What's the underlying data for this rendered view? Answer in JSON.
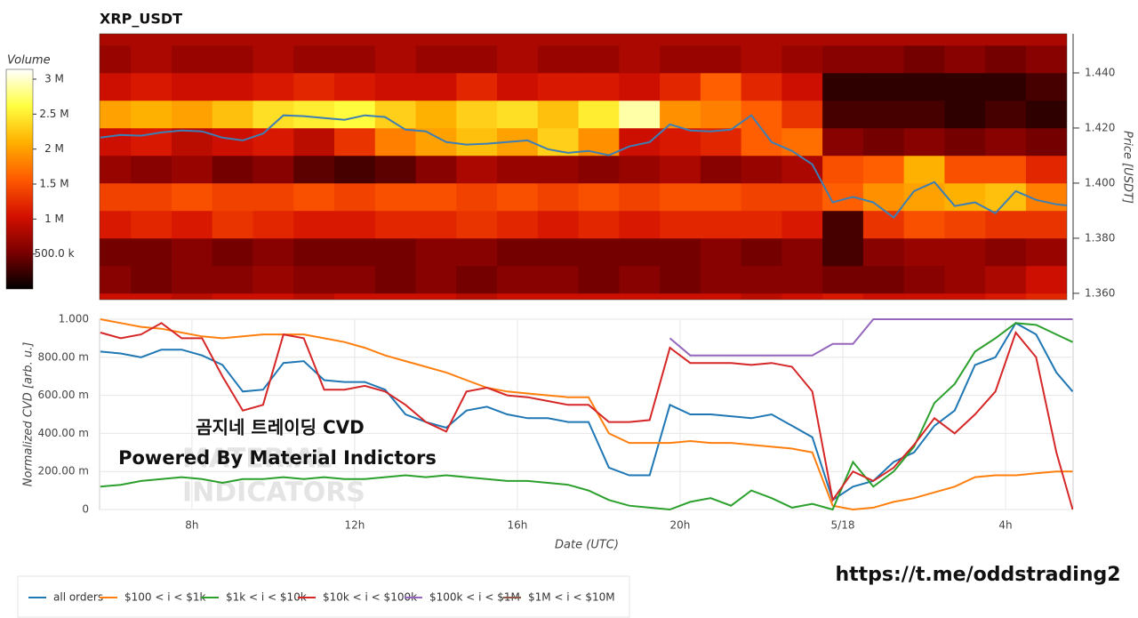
{
  "chart_data": [
    {
      "type": "heatmap",
      "title": "XRP_USDT",
      "colorbar_title": "Volume",
      "ylabel": "Price [USDT]",
      "x": [
        6,
        7,
        8,
        9,
        10,
        11,
        12,
        13,
        14,
        15,
        16,
        17,
        18,
        19,
        20,
        21,
        22,
        23,
        24,
        25,
        26,
        27,
        28,
        29
      ],
      "y": [
        1.355,
        1.365,
        1.375,
        1.385,
        1.395,
        1.405,
        1.415,
        1.425,
        1.435,
        1.445,
        1.455
      ],
      "z": [
        [
          1.0,
          1.0,
          0.9,
          1.0,
          1.0,
          0.9,
          1.0,
          1.0,
          1.0,
          0.9,
          1.0,
          1.0,
          1.0,
          1.0,
          1.0,
          1.0,
          0.9,
          1.0,
          1.1,
          1.0,
          1.0,
          1.0,
          1.1,
          1.2
        ],
        [
          0.6,
          0.5,
          0.6,
          0.6,
          0.7,
          0.6,
          0.6,
          0.5,
          0.6,
          0.5,
          0.6,
          0.6,
          0.5,
          0.6,
          0.5,
          0.6,
          0.6,
          0.6,
          0.5,
          0.5,
          0.6,
          0.7,
          0.8,
          1.0
        ],
        [
          0.5,
          0.5,
          0.6,
          0.5,
          0.6,
          0.5,
          0.5,
          0.5,
          0.6,
          0.6,
          0.5,
          0.5,
          0.5,
          0.5,
          0.5,
          0.6,
          0.5,
          0.6,
          0.3,
          0.6,
          0.7,
          0.7,
          0.6,
          0.7
        ],
        [
          1.1,
          1.2,
          1.1,
          1.3,
          1.2,
          1.1,
          1.1,
          1.2,
          1.2,
          1.3,
          1.2,
          1.1,
          1.2,
          1.1,
          1.2,
          1.2,
          1.2,
          1.1,
          0.3,
          1.3,
          1.5,
          1.4,
          1.3,
          1.3
        ],
        [
          1.4,
          1.4,
          1.5,
          1.4,
          1.4,
          1.5,
          1.4,
          1.5,
          1.5,
          1.4,
          1.5,
          1.4,
          1.5,
          1.4,
          1.5,
          1.5,
          1.4,
          1.4,
          1.6,
          1.9,
          2.0,
          2.1,
          2.2,
          1.8
        ],
        [
          0.7,
          0.6,
          0.7,
          0.5,
          0.6,
          0.4,
          0.3,
          0.4,
          0.6,
          0.8,
          0.7,
          0.7,
          0.6,
          0.7,
          0.8,
          0.6,
          0.7,
          0.8,
          1.5,
          1.6,
          2.1,
          1.5,
          1.5,
          1.2
        ],
        [
          1.0,
          1.1,
          0.9,
          1.0,
          1.1,
          0.9,
          1.3,
          1.8,
          2.0,
          2.2,
          2.0,
          2.3,
          1.9,
          1.0,
          1.1,
          1.2,
          1.6,
          1.7,
          0.6,
          0.5,
          0.6,
          0.5,
          0.6,
          0.5
        ],
        [
          2.0,
          2.1,
          2.0,
          2.2,
          2.4,
          2.5,
          2.6,
          2.3,
          2.1,
          2.3,
          2.4,
          2.2,
          2.5,
          2.9,
          1.9,
          1.8,
          1.6,
          1.3,
          0.3,
          0.3,
          0.3,
          0.2,
          0.3,
          0.2
        ],
        [
          1.0,
          1.1,
          1.0,
          1.0,
          1.1,
          1.2,
          1.1,
          1.0,
          1.0,
          1.2,
          1.0,
          1.1,
          1.1,
          1.0,
          1.2,
          1.6,
          1.2,
          1.0,
          0.2,
          0.2,
          0.2,
          0.2,
          0.2,
          0.3
        ],
        [
          0.7,
          0.8,
          0.7,
          0.7,
          0.8,
          0.7,
          0.7,
          0.8,
          0.7,
          0.7,
          0.8,
          0.7,
          0.7,
          0.8,
          0.7,
          0.7,
          0.8,
          0.7,
          0.6,
          0.6,
          0.5,
          0.6,
          0.5,
          0.6
        ],
        [
          0.8,
          0.8,
          0.8,
          0.8,
          0.8,
          0.8,
          0.8,
          0.8,
          0.8,
          0.8,
          0.8,
          0.8,
          0.8,
          0.8,
          0.8,
          0.8,
          0.8,
          0.8,
          0.8,
          0.8,
          0.8,
          0.8,
          0.8,
          0.8
        ]
      ],
      "colorscale": [
        "#000000",
        "#7a0000",
        "#d41000",
        "#ff5a00",
        "#ffb000",
        "#ffff40",
        "#ffffff"
      ],
      "zlim": [
        0,
        3.14
      ],
      "zticks": [
        {
          "value": 0.5,
          "label": "500.0 k"
        },
        {
          "value": 1,
          "label": "1 M"
        },
        {
          "value": 1.5,
          "label": "1.5 M"
        },
        {
          "value": 2,
          "label": "2 M"
        },
        {
          "value": 2.5,
          "label": "2.5 M"
        },
        {
          "value": 3,
          "label": "3 M"
        }
      ],
      "xlim": [
        5.73,
        29.66
      ],
      "ylim": [
        1.3577,
        1.4542
      ],
      "yticks": [
        {
          "value": 1.36,
          "label": "1.360"
        },
        {
          "value": 1.38,
          "label": "1.380"
        },
        {
          "value": 1.4,
          "label": "1.400"
        },
        {
          "value": 1.42,
          "label": "1.420"
        },
        {
          "value": 1.44,
          "label": "1.440"
        }
      ],
      "line": {
        "color": "#3d7fb5",
        "x": [
          5.75,
          6.25,
          6.75,
          7.25,
          7.75,
          8.25,
          8.75,
          9.25,
          9.75,
          10.25,
          10.75,
          11.25,
          11.75,
          12.25,
          12.75,
          13.25,
          13.75,
          14.25,
          14.75,
          15.25,
          15.75,
          16.25,
          16.75,
          17.25,
          17.75,
          18.25,
          18.75,
          19.25,
          19.75,
          20.25,
          20.75,
          21.25,
          21.75,
          22.25,
          22.75,
          23.25,
          23.75,
          24.25,
          24.75,
          25.25,
          25.75,
          26.25,
          26.75,
          27.25,
          27.75,
          28.25,
          28.75,
          29.25,
          29.65
        ],
        "values": [
          1.4165,
          1.4175,
          1.4172,
          1.4184,
          1.4191,
          1.4188,
          1.4165,
          1.4155,
          1.418,
          1.4246,
          1.4243,
          1.4236,
          1.423,
          1.4246,
          1.424,
          1.4194,
          1.4188,
          1.4149,
          1.414,
          1.4143,
          1.4149,
          1.4155,
          1.4123,
          1.411,
          1.4117,
          1.4101,
          1.4133,
          1.4149,
          1.4213,
          1.4191,
          1.4188,
          1.4194,
          1.4246,
          1.4149,
          1.4117,
          1.4068,
          1.393,
          1.395,
          1.393,
          1.3875,
          1.3971,
          1.4004,
          1.3917,
          1.393,
          1.3891,
          1.3971,
          1.3939,
          1.3923,
          1.3917
        ]
      }
    },
    {
      "type": "line",
      "xlabel": "Date (UTC)",
      "ylabel": "Normalized CVD [arb. u.]",
      "x": [
        5.75,
        6.25,
        6.75,
        7.25,
        7.75,
        8.25,
        8.75,
        9.25,
        9.75,
        10.25,
        10.75,
        11.25,
        11.75,
        12.25,
        12.75,
        13.25,
        13.75,
        14.25,
        14.75,
        15.25,
        15.75,
        16.25,
        16.75,
        17.25,
        17.75,
        18.25,
        18.75,
        19.25,
        19.75,
        20.25,
        20.75,
        21.25,
        21.75,
        22.25,
        22.75,
        23.25,
        23.75,
        24.25,
        24.75,
        25.25,
        25.75,
        26.25,
        26.75,
        27.25,
        27.75,
        28.25,
        28.75,
        29.25,
        29.65
      ],
      "xlim": [
        5.73,
        29.66
      ],
      "xticks": [
        {
          "value": 8,
          "label": "8h"
        },
        {
          "value": 12,
          "label": "12h"
        },
        {
          "value": 16,
          "label": "16h"
        },
        {
          "value": 20,
          "label": "20h"
        },
        {
          "value": 24,
          "label": "5/18"
        },
        {
          "value": 28,
          "label": "4h"
        }
      ],
      "ylim": [
        0,
        1
      ],
      "yticks": [
        0,
        {
          "value": 0.2,
          "label": "200.00 m"
        },
        {
          "value": 0.4,
          "label": "400.00 m"
        },
        {
          "value": 0.6,
          "label": "600.00 m"
        },
        {
          "value": 0.8,
          "label": "800.00 m"
        },
        {
          "value": 1,
          "label": "1.000"
        }
      ],
      "grid": true,
      "legend": "bottom",
      "series": [
        {
          "name": "all orders",
          "color": "#1f77b4",
          "values": [
            0.83,
            0.82,
            0.8,
            0.84,
            0.84,
            0.81,
            0.76,
            0.62,
            0.63,
            0.77,
            0.78,
            0.68,
            0.67,
            0.67,
            0.63,
            0.5,
            0.46,
            0.43,
            0.52,
            0.54,
            0.5,
            0.48,
            0.48,
            0.46,
            0.46,
            0.22,
            0.18,
            0.18,
            0.55,
            0.5,
            0.5,
            0.49,
            0.48,
            0.5,
            0.44,
            0.38,
            0.05,
            0.12,
            0.15,
            0.25,
            0.3,
            0.44,
            0.52,
            0.76,
            0.8,
            0.98,
            0.92,
            0.72,
            0.62
          ]
        },
        {
          "name": "$100 < i < $1k",
          "color": "#ff7f0e",
          "values": [
            1.0,
            0.98,
            0.96,
            0.95,
            0.93,
            0.91,
            0.9,
            0.91,
            0.92,
            0.92,
            0.92,
            0.9,
            0.88,
            0.85,
            0.81,
            0.78,
            0.75,
            0.72,
            0.68,
            0.64,
            0.62,
            0.61,
            0.6,
            0.59,
            0.59,
            0.4,
            0.35,
            0.35,
            0.35,
            0.36,
            0.35,
            0.35,
            0.34,
            0.33,
            0.32,
            0.3,
            0.02,
            0.0,
            0.01,
            0.04,
            0.06,
            0.09,
            0.12,
            0.17,
            0.18,
            0.18,
            0.19,
            0.2,
            0.2
          ]
        },
        {
          "name": "$1k < i < $10k",
          "color": "#2ca02c",
          "values": [
            0.12,
            0.13,
            0.15,
            0.16,
            0.17,
            0.16,
            0.14,
            0.16,
            0.16,
            0.17,
            0.16,
            0.17,
            0.16,
            0.16,
            0.17,
            0.18,
            0.17,
            0.18,
            0.17,
            0.16,
            0.15,
            0.15,
            0.14,
            0.13,
            0.1,
            0.05,
            0.02,
            0.01,
            0.0,
            0.04,
            0.06,
            0.02,
            0.1,
            0.06,
            0.01,
            0.03,
            0.0,
            0.25,
            0.12,
            0.2,
            0.33,
            0.56,
            0.66,
            0.83,
            0.9,
            0.98,
            0.97,
            0.92,
            0.88
          ]
        },
        {
          "name": "$10k < i < $100k",
          "color": "#d62728",
          "values": [
            0.93,
            0.9,
            0.92,
            0.98,
            0.9,
            0.9,
            0.7,
            0.52,
            0.55,
            0.92,
            0.9,
            0.63,
            0.63,
            0.65,
            0.62,
            0.55,
            0.46,
            0.41,
            0.62,
            0.64,
            0.6,
            0.59,
            0.57,
            0.55,
            0.55,
            0.46,
            0.46,
            0.47,
            0.85,
            0.77,
            0.77,
            0.77,
            0.76,
            0.77,
            0.75,
            0.62,
            0.05,
            0.2,
            0.15,
            0.22,
            0.34,
            0.48,
            0.4,
            0.5,
            0.62,
            0.93,
            0.8,
            0.3,
            0.0
          ]
        },
        {
          "name": "$100k < i < $1M",
          "color": "#9467bd",
          "values": [
            null,
            null,
            null,
            null,
            null,
            null,
            null,
            null,
            null,
            null,
            null,
            null,
            null,
            null,
            null,
            null,
            null,
            null,
            null,
            null,
            null,
            null,
            null,
            null,
            null,
            null,
            null,
            null,
            0.9,
            0.81,
            0.81,
            0.81,
            0.81,
            0.81,
            0.81,
            0.81,
            0.87,
            0.87,
            1.0,
            1.0,
            1.0,
            1.0,
            1.0,
            1.0,
            1.0,
            1.0,
            1.0,
            1.0,
            1.0
          ]
        },
        {
          "name": "$1M < i < $10M",
          "color": "#8c564b",
          "values": [
            null,
            null,
            null,
            null,
            null,
            null,
            null,
            null,
            null,
            null,
            null,
            null,
            null,
            null,
            null,
            null,
            null,
            null,
            null,
            null,
            null,
            null,
            null,
            null,
            null,
            null,
            null,
            null,
            null,
            null,
            null,
            null,
            null,
            null,
            null,
            null,
            null,
            null,
            null,
            null,
            null,
            null,
            null,
            null,
            null,
            null,
            null,
            null,
            null
          ]
        }
      ]
    }
  ],
  "annotations": {
    "watermark_1": "MATERIAL",
    "watermark_2": "INDICATORS",
    "overlay_title": "곰지네 트레이딩 CVD",
    "overlay_subtitle": "Powered By Material Indictors",
    "link": "https://t.me/oddstrading2"
  }
}
